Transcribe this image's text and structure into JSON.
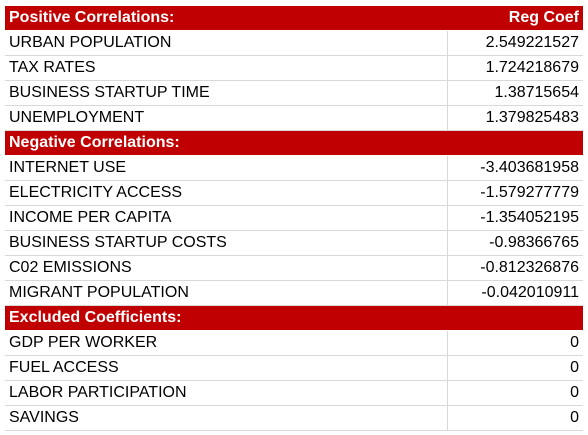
{
  "colors": {
    "header_bg": "#c00000",
    "header_text": "#ffffff",
    "grid_line": "#d9d9d9"
  },
  "positive": {
    "title": "Positive Correlations:",
    "column_label": "Reg Coef",
    "rows": [
      {
        "name": "URBAN POPULATION",
        "value": "2.549221527"
      },
      {
        "name": "TAX RATES",
        "value": "1.724218679"
      },
      {
        "name": "BUSINESS STARTUP TIME",
        "value": "1.38715654"
      },
      {
        "name": "UNEMPLOYMENT",
        "value": "1.379825483"
      }
    ]
  },
  "negative": {
    "title": "Negative Correlations:",
    "rows": [
      {
        "name": "INTERNET USE",
        "value": "-3.403681958"
      },
      {
        "name": "ELECTRICITY ACCESS",
        "value": "-1.579277779"
      },
      {
        "name": "INCOME PER CAPITA",
        "value": "-1.354052195"
      },
      {
        "name": "BUSINESS STARTUP COSTS",
        "value": "-0.98366765"
      },
      {
        "name": "C02 EMISSIONS",
        "value": "-0.812326876"
      },
      {
        "name": "MIGRANT POPULATION",
        "value": "-0.042010911"
      }
    ]
  },
  "excluded": {
    "title": "Excluded Coefficients:",
    "rows": [
      {
        "name": "GDP PER WORKER",
        "value": "0"
      },
      {
        "name": "FUEL ACCESS",
        "value": "0"
      },
      {
        "name": "LABOR PARTICIPATION",
        "value": "0"
      },
      {
        "name": "SAVINGS",
        "value": "0"
      }
    ]
  }
}
